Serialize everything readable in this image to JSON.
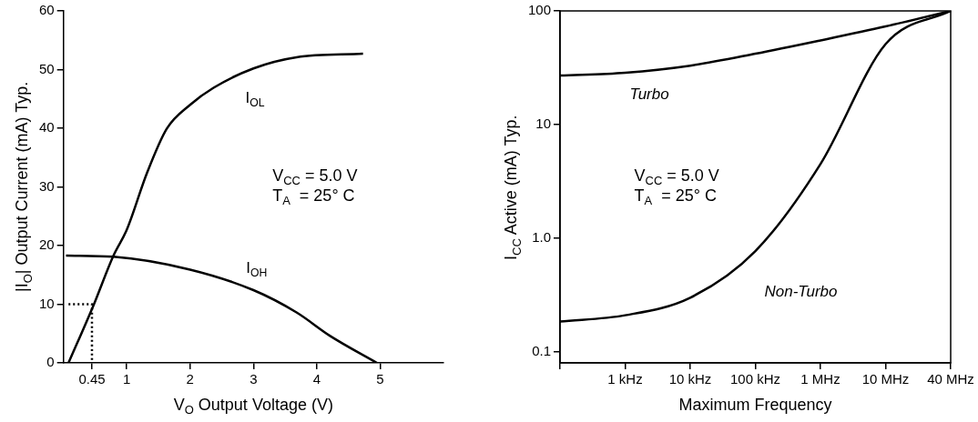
{
  "chart_data": [
    {
      "type": "line",
      "xlabel": "V$_{O}$ Output Voltage (V)",
      "ylabel": "|I$_{O}$| Output Current (mA) Typ.",
      "xlim": [
        0,
        6
      ],
      "xticks": [
        0.45,
        1,
        2,
        3,
        4,
        5
      ],
      "ylim": [
        0,
        60
      ],
      "yticks": [
        0,
        10,
        20,
        30,
        40,
        50,
        60
      ],
      "legend": false,
      "marker": "none",
      "annotations": [
        "V$_{CC}$ = 5.0 V",
        "T$_{A}$  = 25° C"
      ],
      "series": [
        {
          "name": "I$_{OL}$",
          "color": "#000000",
          "x": [
            0.08,
            0.47,
            0.79,
            1,
            1.32,
            1.63,
            2,
            2.37,
            3,
            3.68,
            4.73
          ],
          "values": [
            0,
            9.7,
            18.3,
            22.7,
            32.4,
            39.9,
            44,
            46.9,
            50.2,
            52.1,
            52.7
          ]
        },
        {
          "name": "I$_{OH}$",
          "color": "#000000",
          "x": [
            0.04,
            0.79,
            2,
            3,
            3.68,
            4.21,
            4.95
          ],
          "values": [
            18.3,
            18.1,
            15.9,
            12.4,
            8.6,
            4.6,
            0
          ]
        },
        {
          "color": "#000000",
          "line_style": "dotted",
          "x": [
            0.08,
            0.45,
            0.45
          ],
          "values": [
            10,
            10,
            0
          ]
        }
      ]
    },
    {
      "type": "line",
      "xlabel": "Maximum Frequency",
      "ylabel": "I$_{CC}$ Active (mA) Typ.",
      "log": "y",
      "categories": [
        null,
        "1 kHz",
        "10 kHz",
        "100 kHz",
        "1 MHz",
        "10 MHz",
        "40 MHz"
      ],
      "ylim": [
        0.08,
        100
      ],
      "yticks": [
        0.1,
        {
          "value": 1,
          "label": "1.0"
        },
        10,
        100
      ],
      "legend": false,
      "marker": "none",
      "annotations": [
        "V$_{CC}$ = 5.0 V",
        "T$_{A}$  = 25° C"
      ],
      "series": [
        {
          "name": "Turbo",
          "color": "#000000",
          "values": [
            27,
            28.6,
            33,
            42,
            55,
            73,
            100
          ]
        },
        {
          "name": "Non-Turbo",
          "color": "#000000",
          "values": [
            0.185,
            0.21,
            0.3,
            0.77,
            4.5,
            51,
            100
          ]
        }
      ]
    }
  ]
}
